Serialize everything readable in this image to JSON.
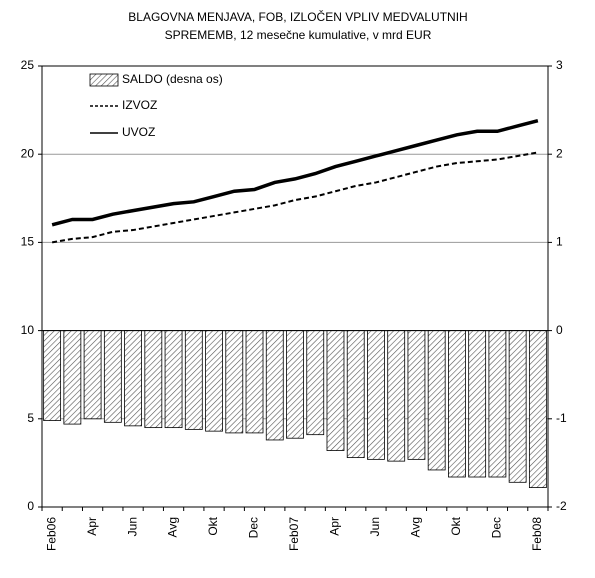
{
  "chart_data": {
    "type": "bar-line",
    "title": [
      "BLAGOVNA MENJAVA, FOB, IZLOČEN VPLIV MEDVALUTNIH",
      "SPREMEMB, 12 mesečne kumulative, v mrd EUR"
    ],
    "categories": [
      "Feb06",
      null,
      "Apr",
      null,
      "Jun",
      null,
      "Avg",
      null,
      "Okt",
      null,
      "Dec",
      null,
      "Feb07",
      null,
      "Apr",
      null,
      "Jun",
      null,
      "Avg",
      null,
      "Okt",
      null,
      "Dec",
      null,
      "Feb08"
    ],
    "series": [
      {
        "name": "SALDO (desna os)",
        "type": "bar",
        "axis": "y2",
        "color": "#555555",
        "values": [
          -1.02,
          -1.06,
          -1.0,
          -1.04,
          -1.08,
          -1.1,
          -1.1,
          -1.12,
          -1.14,
          -1.16,
          -1.16,
          -1.24,
          -1.22,
          -1.18,
          -1.36,
          -1.44,
          -1.46,
          -1.48,
          -1.46,
          -1.58,
          -1.66,
          -1.66,
          -1.66,
          -1.72,
          -1.78
        ]
      },
      {
        "name": "IZVOZ",
        "type": "line",
        "dash": true,
        "color": "#000000",
        "values": [
          15.0,
          15.2,
          15.3,
          15.6,
          15.7,
          15.9,
          16.1,
          16.3,
          16.5,
          16.7,
          16.9,
          17.1,
          17.4,
          17.6,
          17.9,
          18.2,
          18.4,
          18.7,
          19.0,
          19.3,
          19.5,
          19.6,
          19.7,
          19.9,
          20.1
        ]
      },
      {
        "name": "UVOZ",
        "type": "line",
        "dash": false,
        "color": "#000000",
        "values": [
          16.0,
          16.3,
          16.3,
          16.6,
          16.8,
          17.0,
          17.2,
          17.3,
          17.6,
          17.9,
          18.0,
          18.4,
          18.6,
          18.9,
          19.3,
          19.6,
          19.9,
          20.2,
          20.5,
          20.8,
          21.1,
          21.3,
          21.3,
          21.6,
          21.9
        ]
      }
    ],
    "ylim": [
      0,
      25
    ],
    "yticks": [
      0,
      5,
      10,
      15,
      20,
      25
    ],
    "y2lim": [
      -2,
      3
    ],
    "y2ticks": [
      -2,
      -1,
      0,
      1,
      2,
      3
    ],
    "grid": true,
    "legend": "top-left"
  }
}
